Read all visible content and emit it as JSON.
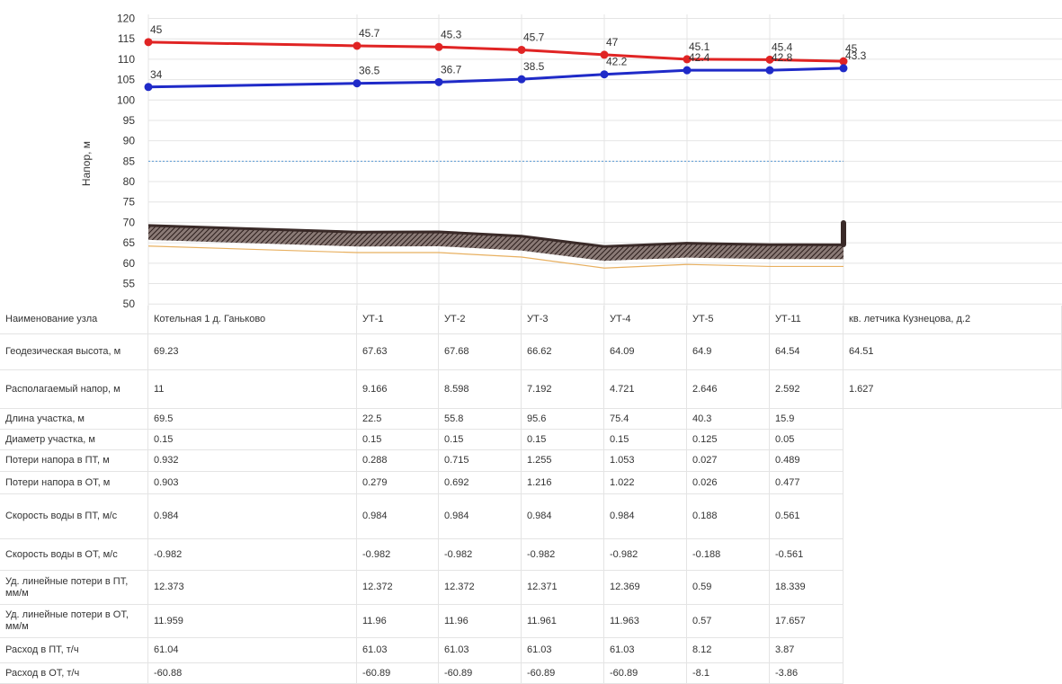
{
  "chart_data": {
    "type": "line",
    "ylabel": "Напор, м",
    "categories": [
      "Котельная 1 д. Ганьково",
      "УТ-1",
      "УТ-2",
      "УТ-3",
      "УТ-4",
      "УТ-5",
      "УТ-11",
      "кв. летчика Кузнецова, д.2"
    ],
    "ylim": [
      48.5,
      121
    ],
    "yticks": [
      50,
      55,
      60,
      65,
      70,
      75,
      80,
      85,
      90,
      95,
      100,
      105,
      110,
      115,
      120
    ],
    "grid": true,
    "series": [
      {
        "color": "#e02424",
        "values": [
          114.2,
          113.3,
          113.0,
          112.3,
          111.1,
          110.0,
          109.9,
          109.5
        ],
        "labels": [
          45,
          45.7,
          45.3,
          45.7,
          47,
          45.1,
          45.4,
          45
        ]
      },
      {
        "color": "#1f2ac8",
        "values": [
          103.2,
          104.1,
          104.4,
          105.1,
          106.3,
          107.3,
          107.3,
          107.8
        ],
        "labels": [
          34,
          36.5,
          36.7,
          38.5,
          42.2,
          42.4,
          42.8,
          43.3
        ]
      },
      {
        "color": "#e8b060",
        "values": [
          64.2,
          62.6,
          62.6,
          61.5,
          58.8,
          59.7,
          59.2,
          59.2
        ]
      }
    ],
    "ground_color": "#3a2a28",
    "hline": {
      "value": 85,
      "color": "#5b9bd5"
    }
  },
  "table": {
    "header": "Наименование узла",
    "rows": [
      {
        "label": "Геодезическая высота, м",
        "cells": [
          69.23,
          67.63,
          67.68,
          66.62,
          64.09,
          64.9,
          64.54,
          64.51
        ]
      },
      {
        "label": "Располагаемый напор, м",
        "cells": [
          11,
          9.166,
          8.598,
          7.192,
          4.721,
          2.646,
          2.592,
          1.627
        ]
      },
      {
        "label": "Длина участка, м",
        "cells": [
          69.5,
          22.5,
          55.8,
          95.6,
          75.4,
          40.3,
          15.9,
          null
        ]
      },
      {
        "label": "Диаметр участка, м",
        "cells": [
          0.15,
          0.15,
          0.15,
          0.15,
          0.15,
          0.125,
          0.05,
          null
        ]
      },
      {
        "label": "Потери напора в ПТ, м",
        "cells": [
          0.932,
          0.288,
          0.715,
          1.255,
          1.053,
          0.027,
          0.489,
          null
        ]
      },
      {
        "label": "Потери напора в ОТ, м",
        "cells": [
          0.903,
          0.279,
          0.692,
          1.216,
          1.022,
          0.026,
          0.477,
          null
        ]
      },
      {
        "label": "Скорость воды в ПТ, м/с",
        "cells": [
          0.984,
          0.984,
          0.984,
          0.984,
          0.984,
          0.188,
          0.561,
          null
        ]
      },
      {
        "label": "Скорость воды в ОТ, м/с",
        "cells": [
          -0.982,
          -0.982,
          -0.982,
          -0.982,
          -0.982,
          -0.188,
          -0.561,
          null
        ]
      },
      {
        "label": "Уд. линейные потери в ПТ, мм/м",
        "cells": [
          12.373,
          12.372,
          12.372,
          12.371,
          12.369,
          0.59,
          18.339,
          null
        ]
      },
      {
        "label": "Уд. линейные потери в ОТ, мм/м",
        "cells": [
          11.959,
          11.96,
          11.96,
          11.961,
          11.963,
          0.57,
          17.657,
          null
        ]
      },
      {
        "label": "Расход в ПТ, т/ч",
        "cells": [
          61.04,
          61.03,
          61.03,
          61.03,
          61.03,
          8.12,
          3.87,
          null
        ]
      },
      {
        "label": "Расход в ОТ, т/ч",
        "cells": [
          -60.88,
          -60.89,
          -60.89,
          -60.89,
          -60.89,
          -8.1,
          -3.86,
          null
        ]
      }
    ]
  }
}
